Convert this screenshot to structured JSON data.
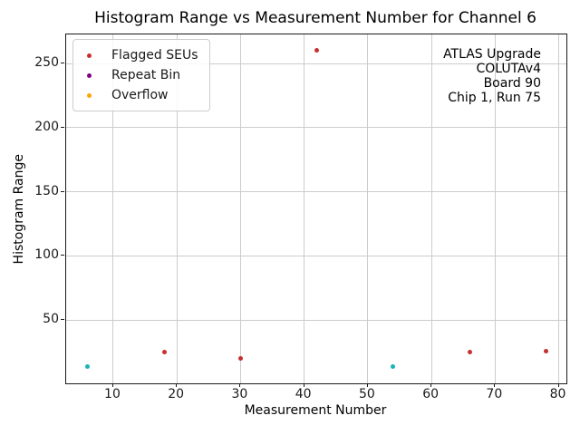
{
  "chart_data": {
    "type": "scatter",
    "title": "Histogram Range vs Measurement Number for Channel 6",
    "xlabel": "Measurement Number",
    "ylabel": "Histogram Range",
    "xlim": [
      2.6,
      81.2
    ],
    "ylim": [
      0.8,
      272.6
    ],
    "xticks": [
      10,
      20,
      30,
      40,
      50,
      60,
      70,
      80
    ],
    "yticks": [
      50,
      100,
      150,
      200,
      250
    ],
    "grid": true,
    "legend_position": "upper left",
    "series": [
      {
        "name": "unflagged",
        "label": "",
        "in_legend": false,
        "color": "#17b4b8",
        "points": [
          [
            6,
            14
          ],
          [
            54,
            14
          ]
        ]
      },
      {
        "name": "flagged-seus",
        "label": "Flagged SEUs",
        "in_legend": true,
        "color": "#c62f2f",
        "points": [
          [
            18,
            25
          ],
          [
            30,
            20
          ],
          [
            42,
            260
          ],
          [
            66,
            25
          ],
          [
            78,
            26
          ]
        ]
      },
      {
        "name": "repeat-bin",
        "label": "Repeat Bin",
        "in_legend": true,
        "color": "#800080",
        "points": []
      },
      {
        "name": "overflow",
        "label": "Overflow",
        "in_legend": true,
        "color": "#ffa500",
        "points": []
      }
    ],
    "annotation_lines": [
      "ATLAS Upgrade",
      "COLUTAv4",
      "Board 90",
      "Chip 1, Run 75"
    ]
  }
}
